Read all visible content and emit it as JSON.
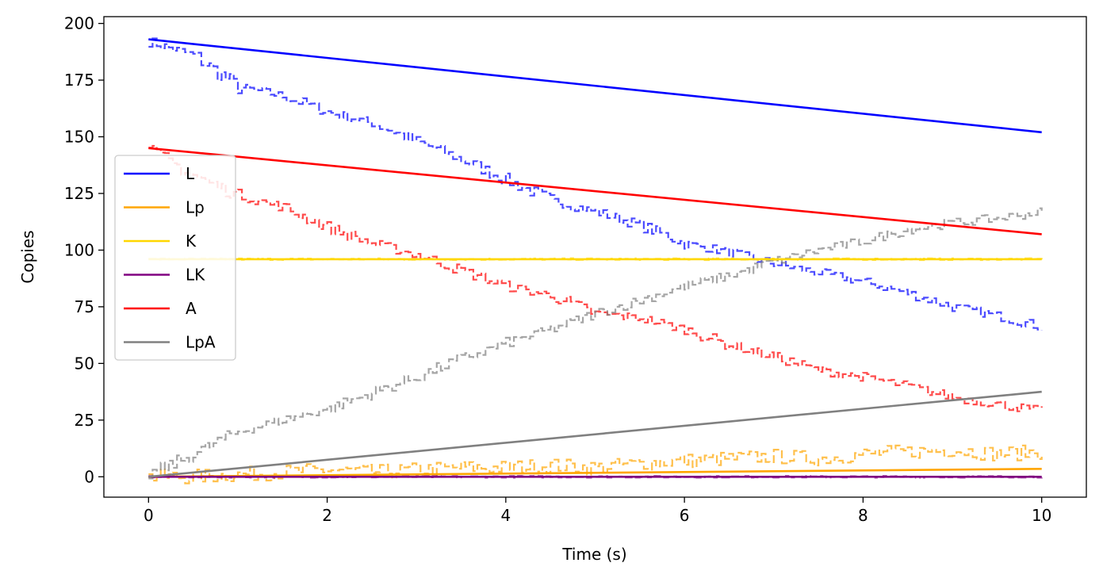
{
  "chart_data": {
    "type": "line",
    "xlabel": "Time (s)",
    "ylabel": "Copies",
    "xlim": [
      -0.5,
      10.5
    ],
    "ylim": [
      -9,
      203
    ],
    "xticks": [
      0,
      2,
      4,
      6,
      8,
      10
    ],
    "yticks": [
      0,
      25,
      50,
      75,
      100,
      125,
      150,
      175,
      200
    ],
    "grid": false,
    "legend_position": "center-left",
    "series": [
      {
        "name": "L",
        "color": "#0000ff",
        "x": [
          0,
          10
        ],
        "y": [
          193,
          152
        ]
      },
      {
        "name": "Lp",
        "color": "#ffa500",
        "x": [
          0,
          10
        ],
        "y": [
          0,
          3.5
        ]
      },
      {
        "name": "K",
        "color": "#ffd700",
        "x": [
          0,
          10
        ],
        "y": [
          96,
          96
        ]
      },
      {
        "name": "LK",
        "color": "#800080",
        "x": [
          0,
          10
        ],
        "y": [
          0,
          0
        ]
      },
      {
        "name": "A",
        "color": "#ff0000",
        "x": [
          0,
          10
        ],
        "y": [
          145,
          107
        ]
      },
      {
        "name": "LpA",
        "color": "#808080",
        "x": [
          0,
          10
        ],
        "y": [
          0,
          37.5
        ]
      }
    ],
    "stochastic_series": [
      {
        "name": "L",
        "color": "#0000ff",
        "x": [
          0,
          0.5,
          1,
          1.5,
          2,
          2.5,
          3,
          3.5,
          4,
          4.5,
          5,
          5.5,
          6,
          6.5,
          7,
          7.5,
          8,
          8.5,
          9,
          9.5,
          10
        ],
        "y": [
          192,
          186,
          172,
          168,
          161,
          156,
          148,
          140,
          131,
          122,
          117,
          111,
          103,
          99,
          94,
          90,
          86,
          81,
          75,
          71,
          66
        ]
      },
      {
        "name": "Lp",
        "color": "#ffa500",
        "x": [
          0,
          0.5,
          1,
          1.5,
          2,
          2.5,
          3,
          3.5,
          4,
          4.5,
          5,
          5.5,
          6,
          6.5,
          7,
          7.5,
          8,
          8.5,
          9,
          9.5,
          10
        ],
        "y": [
          0,
          0,
          1,
          2,
          3,
          2,
          3,
          4,
          4,
          5,
          4,
          6,
          7,
          8,
          9,
          8,
          10,
          11,
          12,
          10,
          11
        ]
      },
      {
        "name": "K",
        "color": "#ffd700",
        "x": [
          0,
          10
        ],
        "y": [
          96,
          96
        ]
      },
      {
        "name": "LK",
        "color": "#800080",
        "x": [
          0,
          10
        ],
        "y": [
          0,
          0
        ]
      },
      {
        "name": "A",
        "color": "#ff0000",
        "x": [
          0,
          0.5,
          1,
          1.5,
          2,
          2.5,
          3,
          3.5,
          4,
          4.5,
          5,
          5.5,
          6,
          6.5,
          7,
          7.5,
          8,
          8.5,
          9,
          9.5,
          10
        ],
        "y": [
          144,
          133,
          124,
          119,
          110,
          103,
          98,
          91,
          84,
          80,
          72,
          70,
          65,
          58,
          53,
          47,
          44,
          40,
          35,
          32,
          29
        ]
      },
      {
        "name": "LpA",
        "color": "#808080",
        "x": [
          0,
          0.5,
          1,
          1.5,
          2,
          2.5,
          3,
          3.5,
          4,
          4.5,
          5,
          5.5,
          6,
          6.5,
          7,
          7.5,
          8,
          8.5,
          9,
          9.5,
          10
        ],
        "y": [
          1,
          10,
          20,
          25,
          30,
          37,
          44,
          52,
          59,
          65,
          72,
          78,
          84,
          89,
          95,
          100,
          104,
          109,
          112,
          114,
          117
        ]
      }
    ]
  }
}
